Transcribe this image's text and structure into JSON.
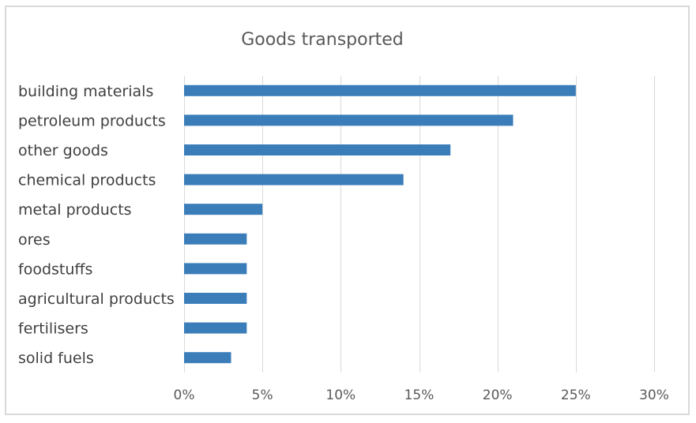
{
  "chart_data": {
    "type": "bar",
    "orientation": "horizontal",
    "title": "Goods transported",
    "xlabel": "",
    "ylabel": "",
    "categories": [
      "building materials",
      "petroleum products",
      "other goods",
      "chemical products",
      "metal products",
      "ores",
      "foodstuffs",
      "agricultural products",
      "fertilisers",
      "solid fuels"
    ],
    "values": [
      25,
      21,
      17,
      14,
      5,
      4,
      4,
      4,
      4,
      3
    ],
    "unit": "%",
    "xlim": [
      0,
      30
    ],
    "xticks": [
      "0%",
      "5%",
      "10%",
      "15%",
      "20%",
      "25%",
      "30%"
    ],
    "grid": true,
    "legend": "none",
    "bar_color": "#3a7db9"
  }
}
